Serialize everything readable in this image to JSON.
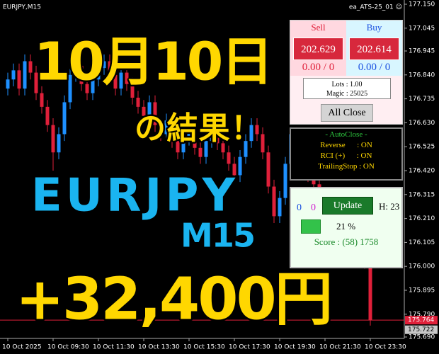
{
  "header": {
    "symbol": "EURJPY,M15",
    "ea": "ea_ATS-25_01 ☺"
  },
  "overlay": {
    "date": "10月10日",
    "result": "の結果！",
    "pair": "EURJPY",
    "timeframe": "M15",
    "profit": "+32,400円"
  },
  "trade_panel": {
    "sell_label": "Sell",
    "buy_label": "Buy",
    "sell_price": "202.629",
    "buy_price": "202.614",
    "sell_pl": "0.00 / 0",
    "buy_pl": "0.00 / 0",
    "lots": "Lots  : 1.00",
    "magic": "Magic : 25025",
    "close_button": "All Close"
  },
  "autoclose_panel": {
    "title": "- AutoClose -",
    "rows": [
      "Reverse      : ON",
      "RCI (+)      : ON",
      "TrailingStop : ON"
    ]
  },
  "status_panel": {
    "count_a": "0",
    "count_b": "0",
    "update_button": "Update",
    "hour": "H: 23",
    "progress": "21 %",
    "score": "Score : (58) 1758"
  },
  "chart_data": {
    "type": "candlestick",
    "up_color": "#1e90ff",
    "down_color": "#e0203a",
    "categories": [
      "10 Oct 2025",
      null,
      null,
      null,
      null,
      null,
      null,
      null,
      "10 Oct 09:30",
      null,
      null,
      null,
      null,
      null,
      null,
      null,
      "10 Oct 11:30",
      null,
      null,
      null,
      null,
      null,
      null,
      null,
      "10 Oct 13:30",
      null,
      null,
      null,
      null,
      null,
      null,
      null,
      "10 Oct 15:30",
      null,
      null,
      null,
      null,
      null,
      null,
      null,
      "10 Oct 17:30",
      null,
      null,
      null,
      null,
      null,
      null,
      null,
      "10 Oct 19:30",
      null,
      null,
      null,
      null,
      null,
      null,
      null,
      "10 Oct 21:30",
      null,
      null,
      null,
      null,
      null,
      null,
      null,
      "10 Oct 23:30"
    ],
    "open": [
      176.78,
      176.82,
      176.86,
      176.78,
      176.9,
      176.85,
      176.76,
      176.7,
      176.62,
      176.5,
      176.58,
      176.72,
      176.84,
      176.88,
      176.8,
      176.76,
      176.82,
      176.87,
      176.9,
      176.84,
      176.78,
      176.85,
      176.8,
      176.74,
      176.7,
      176.66,
      176.72,
      176.62,
      176.58,
      176.64,
      176.55,
      176.5,
      176.56,
      176.6,
      176.52,
      176.48,
      176.55,
      176.6,
      176.54,
      176.5,
      176.45,
      176.4,
      176.48,
      176.55,
      176.62,
      176.58,
      176.5,
      176.35,
      176.22,
      176.3,
      176.45,
      176.58,
      176.52,
      176.44,
      176.4,
      176.36,
      176.3,
      176.26,
      176.22,
      176.18,
      176.15,
      176.12,
      176.08,
      176.05,
      176.02
    ],
    "high": [
      176.85,
      176.89,
      176.89,
      176.93,
      176.93,
      176.88,
      176.79,
      176.73,
      176.65,
      176.61,
      176.75,
      176.87,
      176.91,
      176.91,
      176.83,
      176.85,
      176.9,
      176.93,
      176.93,
      176.87,
      176.88,
      176.88,
      176.83,
      176.77,
      176.73,
      176.75,
      176.75,
      176.65,
      176.67,
      176.67,
      176.58,
      176.59,
      176.63,
      176.63,
      176.55,
      176.58,
      176.63,
      176.63,
      176.57,
      176.53,
      176.48,
      176.51,
      176.58,
      176.65,
      176.65,
      176.61,
      176.53,
      176.38,
      176.33,
      176.48,
      176.61,
      176.61,
      176.55,
      176.47,
      176.43,
      176.39,
      176.33,
      176.29,
      176.25,
      176.21,
      176.18,
      176.15,
      176.11,
      176.08,
      176.03
    ],
    "low": [
      176.75,
      176.79,
      176.75,
      176.75,
      176.82,
      176.73,
      176.67,
      176.59,
      176.42,
      176.47,
      176.55,
      176.69,
      176.81,
      176.77,
      176.73,
      176.73,
      176.79,
      176.84,
      176.81,
      176.75,
      176.75,
      176.77,
      176.71,
      176.67,
      176.63,
      176.63,
      176.59,
      176.55,
      176.55,
      176.52,
      176.47,
      176.47,
      176.53,
      176.49,
      176.45,
      176.45,
      176.52,
      176.51,
      176.47,
      176.42,
      176.37,
      176.37,
      176.45,
      176.52,
      176.55,
      176.47,
      176.32,
      176.19,
      176.19,
      176.27,
      176.42,
      176.49,
      176.41,
      176.37,
      176.33,
      176.27,
      176.23,
      176.19,
      176.15,
      176.12,
      176.09,
      176.05,
      176.02,
      175.99,
      175.74
    ],
    "close": [
      176.82,
      176.86,
      176.78,
      176.9,
      176.85,
      176.76,
      176.7,
      176.62,
      176.5,
      176.58,
      176.72,
      176.84,
      176.88,
      176.8,
      176.76,
      176.82,
      176.87,
      176.9,
      176.84,
      176.78,
      176.85,
      176.8,
      176.74,
      176.7,
      176.66,
      176.72,
      176.62,
      176.58,
      176.64,
      176.55,
      176.5,
      176.56,
      176.6,
      176.52,
      176.48,
      176.55,
      176.6,
      176.54,
      176.5,
      176.45,
      176.4,
      176.48,
      176.55,
      176.62,
      176.58,
      176.5,
      176.35,
      176.22,
      176.3,
      176.45,
      176.58,
      176.52,
      176.44,
      176.4,
      176.36,
      176.3,
      176.26,
      176.22,
      176.18,
      176.15,
      176.12,
      176.08,
      176.05,
      176.02,
      175.764
    ],
    "ylim": [
      175.69,
      177.15
    ],
    "yticks": [
      {
        "value": 177.15,
        "label": "177.150"
      },
      {
        "value": 177.045,
        "label": "177.045"
      },
      {
        "value": 176.945,
        "label": "176.945"
      },
      {
        "value": 176.84,
        "label": "176.840"
      },
      {
        "value": 176.735,
        "label": "176.735"
      },
      {
        "value": 176.63,
        "label": "176.630"
      },
      {
        "value": 176.525,
        "label": "176.525"
      },
      {
        "value": 176.42,
        "label": "176.420"
      },
      {
        "value": 176.315,
        "label": "176.315"
      },
      {
        "value": 176.21,
        "label": "176.210"
      },
      {
        "value": 176.105,
        "label": "176.105"
      },
      {
        "value": 176,
        "label": "176.000"
      },
      {
        "value": 175.895,
        "label": "175.895"
      },
      {
        "value": 175.79,
        "label": "175.790"
      },
      {
        "value": 175.69,
        "label": "175.690"
      }
    ],
    "price_lines": [
      {
        "value": 175.764,
        "label": "175.764",
        "color": "#e0203a"
      },
      {
        "value": 175.722,
        "label": "175.722",
        "color": "#c8c8c8"
      }
    ]
  }
}
